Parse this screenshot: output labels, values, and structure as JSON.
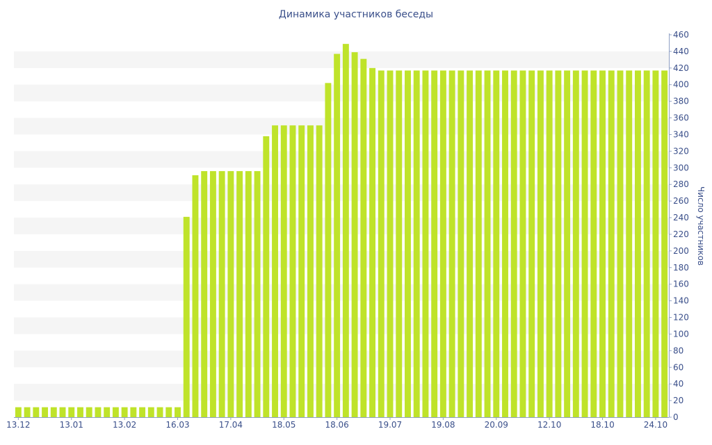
{
  "chart_data": {
    "type": "bar",
    "title": "Динамика участников беседы",
    "xlabel": "",
    "ylabel": "Число участников",
    "ylim": [
      0,
      460
    ],
    "y_ticks": [
      0,
      20,
      40,
      60,
      80,
      100,
      120,
      140,
      160,
      180,
      200,
      220,
      240,
      260,
      280,
      300,
      320,
      340,
      360,
      380,
      400,
      420,
      440,
      460
    ],
    "y_axis_position": "right",
    "grid": "alternating horizontal bands",
    "bar_color": "#bfe32a",
    "x_tick_labels": [
      {
        "label": "13.12",
        "index": 0
      },
      {
        "label": "13.01",
        "index": 6
      },
      {
        "label": "13.02",
        "index": 12
      },
      {
        "label": "16.03",
        "index": 18
      },
      {
        "label": "17.04",
        "index": 24
      },
      {
        "label": "18.05",
        "index": 30
      },
      {
        "label": "18.06",
        "index": 36
      },
      {
        "label": "19.07",
        "index": 42
      },
      {
        "label": "19.08",
        "index": 48
      },
      {
        "label": "20.09",
        "index": 54
      },
      {
        "label": "12.10",
        "index": 60
      },
      {
        "label": "18.10",
        "index": 66
      },
      {
        "label": "24.10",
        "index": 72
      }
    ],
    "values": [
      12,
      12,
      12,
      12,
      12,
      12,
      12,
      12,
      12,
      12,
      12,
      12,
      12,
      12,
      12,
      12,
      12,
      12,
      12,
      241,
      291,
      296,
      296,
      296,
      296,
      296,
      296,
      296,
      338,
      351,
      351,
      351,
      351,
      351,
      351,
      402,
      437,
      449,
      439,
      431,
      420,
      417,
      417,
      417,
      417,
      417,
      417,
      417,
      417,
      417,
      417,
      417,
      417,
      417,
      417,
      417,
      417,
      417,
      417,
      417,
      417,
      417,
      417,
      417,
      417,
      417,
      417,
      417,
      417,
      417,
      417,
      417,
      417,
      417
    ]
  }
}
